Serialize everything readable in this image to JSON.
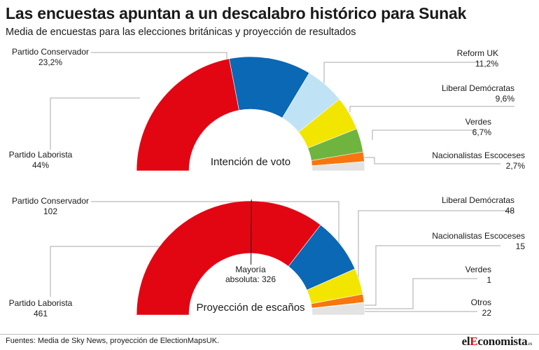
{
  "title": "Las encuestas apuntan a un descalabro histórico para Sunak",
  "subtitle": "Media de encuestas para las elecciones británicas y proyección de resultados",
  "source": "Fuentes: Media de Sky News, proyección de ElectionMapsUK.",
  "logo": {
    "prefix": "el",
    "highlight": "E",
    "rest": "conomista",
    "suffix": ".es"
  },
  "chart_data": [
    {
      "type": "pie",
      "subtype": "half-donut",
      "center_label": "Intención de voto",
      "unit": "%",
      "slices": [
        {
          "name": "Partido Laborista",
          "value": 44,
          "display": "44%",
          "color": "#e20613"
        },
        {
          "name": "Partido Conservador",
          "value": 23.2,
          "display": "23,2%",
          "color": "#0a68b4"
        },
        {
          "name": "Reform UK",
          "value": 11.2,
          "display": "11,2%",
          "color": "#bfe3f5"
        },
        {
          "name": "Liberal Demócratas",
          "value": 9.6,
          "display": "9,6%",
          "color": "#f2e500"
        },
        {
          "name": "Verdes",
          "value": 6.7,
          "display": "6,7%",
          "color": "#6fb43f"
        },
        {
          "name": "Nacionalistas Escoceses",
          "value": 2.7,
          "display": "2,7%",
          "color": "#f7760f"
        },
        {
          "name": "",
          "value": 2.6,
          "display": "",
          "color": "#e3e3e3"
        }
      ]
    },
    {
      "type": "pie",
      "subtype": "half-donut",
      "center_label": "Proyección de escaños",
      "majority_label_line1": "Mayoría",
      "majority_label_line2": "absoluta: 326",
      "majority_value": 326,
      "slices": [
        {
          "name": "Partido Laborista",
          "value": 461,
          "display": "461",
          "color": "#e20613"
        },
        {
          "name": "Partido Conservador",
          "value": 102,
          "display": "102",
          "color": "#0a68b4"
        },
        {
          "name": "Liberal Demócratas",
          "value": 48,
          "display": "48",
          "color": "#f2e500"
        },
        {
          "name": "Nacionalistas Escoceses",
          "value": 15,
          "display": "15",
          "color": "#f7760f"
        },
        {
          "name": "Verdes",
          "value": 1,
          "display": "1",
          "color": "#6fb43f"
        },
        {
          "name": "Otros",
          "value": 22,
          "display": "22",
          "color": "#e3e3e3"
        }
      ]
    }
  ]
}
